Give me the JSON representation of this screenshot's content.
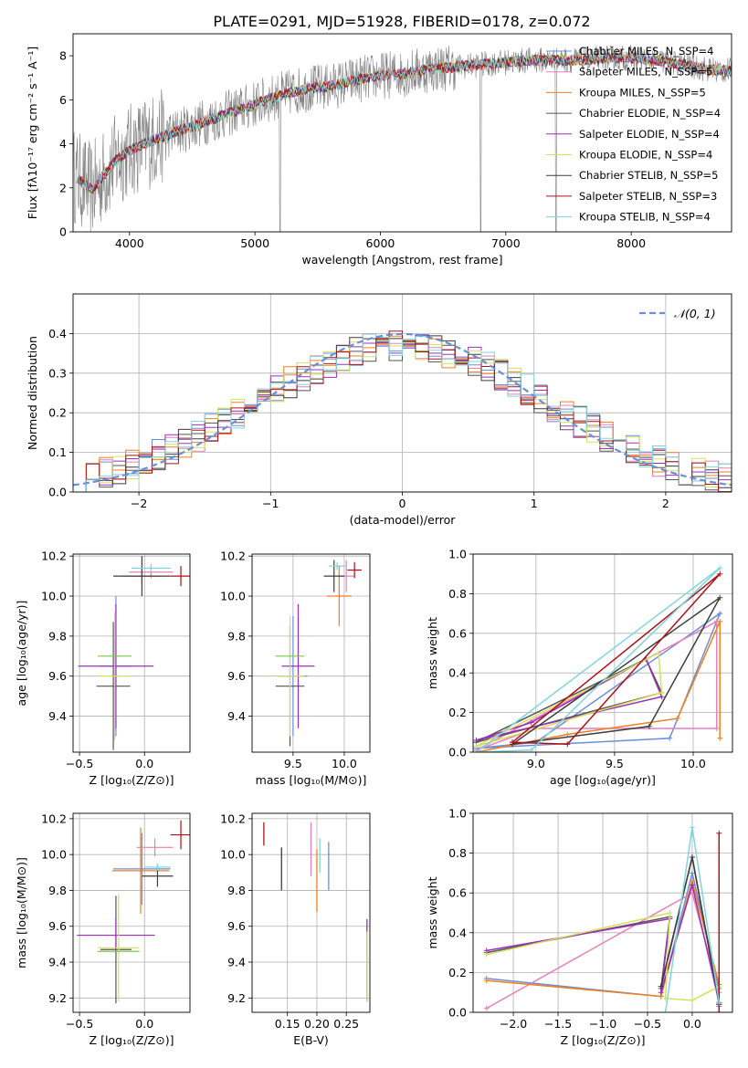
{
  "figure": {
    "title": "PLATE=0291, MJD=51928, FIBERID=0178, z=0.072"
  },
  "colors": {
    "chabrier_miles": "#6a8fd8",
    "salpeter_miles": "#e67fbe",
    "kroupa_miles": "#f07f1e",
    "chabrier_elodie": "#555555",
    "salpeter_elodie": "#9b30b8",
    "kroupa_elodie": "#d6e05a",
    "chabrier_stelib": "#3c3c3c",
    "salpeter_stelib": "#b01018",
    "kroupa_stelib": "#7fd6dc",
    "data": "#808080",
    "normal": "#6a8fd8",
    "green": "#7ec84a"
  },
  "chart_data": [
    {
      "id": "spectrum",
      "type": "line",
      "xlabel": "wavelength [Angstrom, rest frame]",
      "ylabel": "Flux [fλ10⁻¹⁷ erg cm⁻² s⁻¹ A⁻¹]",
      "xlim": [
        3550,
        8800
      ],
      "ylim": [
        0,
        9
      ],
      "xticks": [
        "4000",
        "5000",
        "6000",
        "7000",
        "8000"
      ],
      "yticks": [
        "0",
        "2",
        "4",
        "6",
        "8"
      ],
      "grid": false,
      "legend_position": "top-right",
      "legend": [
        "Chabrier MILES, N_SSP=4",
        "Salpeter MILES, N_SSP=5",
        "Kroupa MILES, N_SSP=5",
        "Chabrier ELODIE, N_SSP=4",
        "Salpeter ELODIE, N_SSP=4",
        "Kroupa ELODIE, N_SSP=4",
        "Chabrier STELIB, N_SSP=5",
        "Salpeter STELIB, N_SSP=3",
        "Kroupa STELIB, N_SSP=4"
      ],
      "model_trend": [
        [
          3550,
          2.6
        ],
        [
          3700,
          1.9
        ],
        [
          3800,
          2.6
        ],
        [
          3900,
          3.3
        ],
        [
          4000,
          3.7
        ],
        [
          4200,
          4.2
        ],
        [
          4400,
          4.6
        ],
        [
          4600,
          5.0
        ],
        [
          4800,
          5.4
        ],
        [
          5000,
          5.8
        ],
        [
          5200,
          6.2
        ],
        [
          5400,
          6.5
        ],
        [
          5600,
          6.6
        ],
        [
          5800,
          6.9
        ],
        [
          6000,
          7.1
        ],
        [
          6200,
          7.2
        ],
        [
          6400,
          7.4
        ],
        [
          6600,
          7.5
        ],
        [
          6800,
          7.6
        ],
        [
          7000,
          7.7
        ],
        [
          7200,
          7.8
        ],
        [
          7400,
          7.8
        ],
        [
          7600,
          7.8
        ],
        [
          7800,
          7.9
        ],
        [
          8000,
          7.9
        ],
        [
          8200,
          7.8
        ],
        [
          8400,
          7.6
        ],
        [
          8600,
          7.4
        ],
        [
          8800,
          7.3
        ]
      ],
      "data_xrange": [
        3550,
        8800
      ]
    },
    {
      "id": "residuals",
      "type": "line",
      "xlabel": "(data-model)/error",
      "ylabel": "Normed distribution",
      "xlim": [
        -2.5,
        2.5
      ],
      "ylim": [
        0,
        0.5
      ],
      "xticks": [
        "−2",
        "−1",
        "0",
        "1",
        "2"
      ],
      "yticks": [
        "0.0",
        "0.1",
        "0.2",
        "0.3",
        "0.4"
      ],
      "grid": true,
      "legend_position": "top-right",
      "legend": [
        "𝒩(0, 1)"
      ],
      "normal_curve": {
        "mean": 0,
        "sigma": 1
      }
    },
    {
      "id": "age_vs_z",
      "type": "scatter",
      "xlabel": "Z [log₁₀(Z/Z⊙)]",
      "ylabel": "age  [log₁₀(age/yr)]",
      "xlim": [
        -0.55,
        0.35
      ],
      "ylim": [
        9.22,
        10.21
      ],
      "xticks": [
        "−0.5",
        "0.0"
      ],
      "yticks": [
        "9.4",
        "9.6",
        "9.8",
        "10.0",
        "10.2"
      ],
      "grid": true,
      "points": [
        {
          "model": "chabrier_miles",
          "x": -0.22,
          "xerr": 0.12,
          "y": 9.65,
          "yerr": 0.35
        },
        {
          "model": "salpeter_miles",
          "x": 0.05,
          "xerr": 0.17,
          "y": 10.12,
          "yerr": 0.03
        },
        {
          "model": "kroupa_miles",
          "x": -0.02,
          "xerr": 0.15,
          "y": 10.1,
          "yerr": 0.04
        },
        {
          "model": "chabrier_elodie",
          "x": -0.24,
          "xerr": 0.13,
          "y": 9.55,
          "yerr": 0.32
        },
        {
          "model": "salpeter_elodie",
          "x": -0.22,
          "xerr": 0.29,
          "y": 9.65,
          "yerr": 0.31
        },
        {
          "model": "kroupa_elodie",
          "x": -0.23,
          "xerr": 0.12,
          "y": 9.6,
          "yerr": 0.32
        },
        {
          "model": "chabrier_stelib",
          "x": -0.02,
          "xerr": 0.22,
          "y": 10.1,
          "yerr": 0.1
        },
        {
          "model": "salpeter_stelib",
          "x": 0.28,
          "xerr": 0.08,
          "y": 10.1,
          "yerr": 0.05
        },
        {
          "model": "kroupa_stelib",
          "x": 0.05,
          "xerr": 0.15,
          "y": 10.14,
          "yerr": 0.02
        },
        {
          "model": "green",
          "x": -0.23,
          "xerr": 0.13,
          "y": 9.7,
          "yerr": 0.0
        }
      ]
    },
    {
      "id": "age_vs_mass",
      "type": "scatter",
      "xlabel": "mass [log₁₀(M/M⊙)]",
      "ylabel": "",
      "xlim": [
        9.1,
        10.25
      ],
      "ylim": [
        9.22,
        10.21
      ],
      "xticks": [
        "9.5",
        "10.0"
      ],
      "yticks": [
        "9.4",
        "9.6",
        "9.8",
        "10.0",
        "10.2"
      ],
      "grid": true,
      "points": [
        {
          "model": "chabrier_miles",
          "x": 9.5,
          "xerr": 0.14,
          "y": 9.6,
          "yerr": 0.3
        },
        {
          "model": "salpeter_miles",
          "x": 10.02,
          "xerr": 0.08,
          "y": 10.1,
          "yerr": 0.08
        },
        {
          "model": "kroupa_miles",
          "x": 9.95,
          "xerr": 0.12,
          "y": 10.0,
          "yerr": 0.15
        },
        {
          "model": "chabrier_elodie",
          "x": 9.47,
          "xerr": 0.14,
          "y": 9.55,
          "yerr": 0.3
        },
        {
          "model": "salpeter_elodie",
          "x": 9.55,
          "xerr": 0.16,
          "y": 9.65,
          "yerr": 0.31
        },
        {
          "model": "kroupa_elodie",
          "x": 9.47,
          "xerr": 0.14,
          "y": 9.6,
          "yerr": 0.3
        },
        {
          "model": "chabrier_stelib",
          "x": 9.9,
          "xerr": 0.1,
          "y": 10.1,
          "yerr": 0.08
        },
        {
          "model": "salpeter_stelib",
          "x": 10.1,
          "xerr": 0.07,
          "y": 10.13,
          "yerr": 0.04
        },
        {
          "model": "kroupa_stelib",
          "x": 9.93,
          "xerr": 0.08,
          "y": 10.15,
          "yerr": 0.02
        },
        {
          "model": "green",
          "x": 9.47,
          "xerr": 0.14,
          "y": 9.7,
          "yerr": 0.0
        }
      ]
    },
    {
      "id": "weight_vs_age",
      "type": "line",
      "xlabel": "age  [log₁₀(age/yr)]",
      "ylabel": "mass weight",
      "xlim": [
        8.6,
        10.25
      ],
      "ylim": [
        0,
        1
      ],
      "xticks": [
        "9.0",
        "9.5",
        "10.0"
      ],
      "yticks": [
        "0.0",
        "0.2",
        "0.4",
        "0.6",
        "0.8",
        "1.0"
      ],
      "grid": true,
      "series": [
        {
          "model": "chabrier_miles",
          "x": [
            8.62,
            9.85,
            10.17,
            9.0,
            8.62
          ],
          "y": [
            0.02,
            0.07,
            0.7,
            0.05,
            0.02
          ]
        },
        {
          "model": "salpeter_miles",
          "x": [
            8.62,
            9.0,
            10.15,
            10.15,
            8.62
          ],
          "y": [
            0.01,
            0.12,
            0.12,
            0.66,
            0.01
          ]
        },
        {
          "model": "kroupa_miles",
          "x": [
            8.62,
            9.2,
            9.9,
            10.17,
            10.17
          ],
          "y": [
            0.0,
            0.09,
            0.17,
            0.66,
            0.07
          ]
        },
        {
          "model": "chabrier_elodie",
          "x": [
            8.62,
            9.7,
            9.8,
            8.62
          ],
          "y": [
            0.05,
            0.47,
            0.3,
            0.05
          ]
        },
        {
          "model": "salpeter_elodie",
          "x": [
            8.62,
            8.97,
            9.7,
            9.8,
            8.62
          ],
          "y": [
            0.06,
            0.15,
            0.47,
            0.28,
            0.06
          ]
        },
        {
          "model": "kroupa_elodie",
          "x": [
            8.62,
            9.78,
            9.8,
            8.62
          ],
          "y": [
            0.03,
            0.5,
            0.3,
            0.03
          ]
        },
        {
          "model": "chabrier_stelib",
          "x": [
            8.85,
            9.72,
            10.17,
            8.85
          ],
          "y": [
            0.04,
            0.13,
            0.78,
            0.04
          ]
        },
        {
          "model": "salpeter_stelib",
          "x": [
            8.85,
            9.2,
            10.17,
            8.85
          ],
          "y": [
            0.05,
            0.04,
            0.9,
            0.05
          ]
        },
        {
          "model": "kroupa_stelib",
          "x": [
            8.62,
            8.97,
            10.17,
            8.62
          ],
          "y": [
            0.0,
            0.01,
            0.93,
            0.0
          ]
        }
      ]
    },
    {
      "id": "mass_vs_z",
      "type": "scatter",
      "xlabel": "Z [log₁₀(Z/Z⊙)]",
      "ylabel": "mass [log₁₀(M/M⊙)]",
      "xlim": [
        -0.55,
        0.35
      ],
      "ylim": [
        9.12,
        10.23
      ],
      "xticks": [
        "−0.5",
        "0.0"
      ],
      "yticks": [
        "9.2",
        "9.4",
        "9.6",
        "9.8",
        "10.0",
        "10.2"
      ],
      "grid": true,
      "points": [
        {
          "model": "chabrier_miles",
          "x": -0.02,
          "xerr": 0.22,
          "y": 9.92,
          "yerr": 0.2
        },
        {
          "model": "salpeter_miles",
          "x": 0.08,
          "xerr": 0.14,
          "y": 10.04,
          "yerr": 0.05
        },
        {
          "model": "kroupa_miles",
          "x": -0.03,
          "xerr": 0.22,
          "y": 9.91,
          "yerr": 0.24
        },
        {
          "model": "chabrier_elodie",
          "x": -0.22,
          "xerr": 0.12,
          "y": 9.47,
          "yerr": 0.3
        },
        {
          "model": "salpeter_elodie",
          "x": -0.22,
          "xerr": 0.3,
          "y": 9.55,
          "yerr": 0.1
        },
        {
          "model": "kroupa_elodie",
          "x": -0.2,
          "xerr": 0.16,
          "y": 9.48,
          "yerr": 0.3
        },
        {
          "model": "chabrier_stelib",
          "x": 0.1,
          "xerr": 0.12,
          "y": 9.88,
          "yerr": 0.06
        },
        {
          "model": "salpeter_stelib",
          "x": 0.28,
          "xerr": 0.08,
          "y": 10.11,
          "yerr": 0.08
        },
        {
          "model": "kroupa_stelib",
          "x": 0.1,
          "xerr": 0.1,
          "y": 9.93,
          "yerr": 0.02
        },
        {
          "model": "green",
          "x": -0.2,
          "xerr": 0.16,
          "y": 9.46,
          "yerr": 0.0
        }
      ]
    },
    {
      "id": "mass_vs_ebv",
      "type": "scatter",
      "xlabel": "E(B-V)",
      "ylabel": "",
      "xlim": [
        0.09,
        0.29
      ],
      "ylim": [
        9.12,
        10.23
      ],
      "xticks": [
        "0.15",
        "0.20",
        "0.25"
      ],
      "yticks": [
        "9.2",
        "9.4",
        "9.6",
        "9.8",
        "10.0",
        "10.2"
      ],
      "grid": true,
      "points": [
        {
          "model": "chabrier_miles",
          "x": 0.22,
          "yerr_lo": 9.8,
          "yerr_hi": 10.07
        },
        {
          "model": "salpeter_miles",
          "x": 0.19,
          "yerr_lo": 9.88,
          "yerr_hi": 10.18
        },
        {
          "model": "kroupa_miles",
          "x": 0.2,
          "yerr_lo": 9.68,
          "yerr_hi": 10.03
        },
        {
          "model": "chabrier_elodie",
          "x": 0.285,
          "yerr_lo": 9.18,
          "yerr_hi": 9.55
        },
        {
          "model": "salpeter_elodie",
          "x": 0.285,
          "yerr_lo": 9.55,
          "yerr_hi": 9.64
        },
        {
          "model": "kroupa_elodie",
          "x": 0.285,
          "yerr_lo": 9.18,
          "yerr_hi": 9.57
        },
        {
          "model": "chabrier_stelib",
          "x": 0.14,
          "yerr_lo": 9.8,
          "yerr_hi": 10.04
        },
        {
          "model": "salpeter_stelib",
          "x": 0.11,
          "yerr_lo": 10.05,
          "yerr_hi": 10.18
        },
        {
          "model": "kroupa_stelib",
          "x": 0.205,
          "yerr_lo": 9.9,
          "yerr_hi": 10.09
        }
      ]
    },
    {
      "id": "weight_vs_z",
      "type": "line",
      "xlabel": "Z [log₁₀(Z/Z⊙)]",
      "ylabel": "mass weight",
      "xlim": [
        -2.45,
        0.45
      ],
      "ylim": [
        0,
        1
      ],
      "xticks": [
        "−2.0",
        "−1.5",
        "−1.0",
        "−0.5",
        "0.0"
      ],
      "yticks": [
        "0.0",
        "0.2",
        "0.4",
        "0.6",
        "0.8",
        "1.0"
      ],
      "grid": true,
      "series": [
        {
          "model": "chabrier_miles",
          "x": [
            -2.3,
            -0.35,
            0.0,
            0.3,
            0.3
          ],
          "y": [
            0.17,
            0.08,
            0.7,
            0.12,
            0.03
          ]
        },
        {
          "model": "salpeter_miles",
          "x": [
            -2.3,
            0.0,
            0.3
          ],
          "y": [
            0.02,
            0.6,
            0.1
          ]
        },
        {
          "model": "kroupa_miles",
          "x": [
            -2.3,
            -0.35,
            0.0,
            0.3,
            0.3
          ],
          "y": [
            0.16,
            0.08,
            0.66,
            0.14,
            0.04
          ]
        },
        {
          "model": "chabrier_elodie",
          "x": [
            -2.3,
            -0.25,
            -0.35,
            0.0,
            0.3
          ],
          "y": [
            0.3,
            0.48,
            0.12,
            0.78,
            0.04
          ]
        },
        {
          "model": "salpeter_elodie",
          "x": [
            -2.3,
            -0.25,
            -0.35,
            0.0,
            0.3
          ],
          "y": [
            0.31,
            0.47,
            0.1,
            0.64,
            0.05
          ]
        },
        {
          "model": "kroupa_elodie",
          "x": [
            -2.3,
            -0.25,
            -0.3,
            0.0,
            0.3
          ],
          "y": [
            0.29,
            0.5,
            0.07,
            0.06,
            0.13
          ]
        },
        {
          "model": "chabrier_stelib",
          "x": [
            -0.35,
            0.0,
            0.3,
            0.3
          ],
          "y": [
            0.13,
            0.78,
            0.05,
            0.04
          ]
        },
        {
          "model": "salpeter_stelib",
          "x": [
            0.3,
            0.3
          ],
          "y": [
            0.0,
            0.9
          ]
        },
        {
          "model": "kroupa_stelib",
          "x": [
            -0.3,
            0.0,
            0.3
          ],
          "y": [
            0.0,
            0.93,
            0.05
          ]
        }
      ]
    }
  ]
}
